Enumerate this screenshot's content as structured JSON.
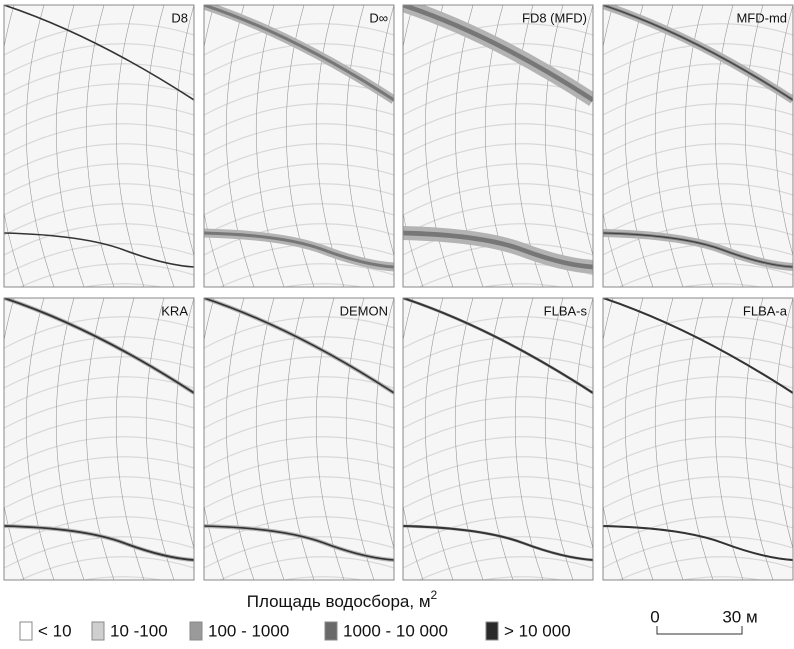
{
  "panels": [
    "D8",
    "D∞",
    "FD8 (MFD)",
    "MFD-md",
    "KRA",
    "DEMON",
    "FLBA-s",
    "FLBA-a"
  ],
  "legend": {
    "title": "Площадь водосбора, м",
    "title_superscript": "2",
    "items": [
      {
        "label": "< 10",
        "color": "#ffffff"
      },
      {
        "label": "10 -100",
        "color": "#cfcfcf"
      },
      {
        "label": "100 - 1000",
        "color": "#9a9a9a"
      },
      {
        "label": "1000 - 10 000",
        "color": "#6a6a6a"
      },
      {
        "label": "> 10 000",
        "color": "#2a2a2a"
      }
    ]
  },
  "scale_bar": {
    "start": "0",
    "end": "30 м"
  }
}
